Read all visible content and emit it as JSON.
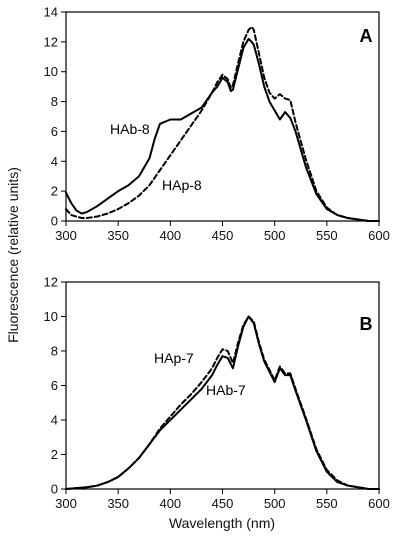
{
  "figure": {
    "ylabel": "Fluorescence (relative units)",
    "xlabel": "Wavelength (nm)"
  },
  "chart_data": [
    {
      "type": "line",
      "panel_label": "A",
      "xlim": [
        300,
        600
      ],
      "ylim": [
        0,
        14
      ],
      "xticks": [
        300,
        350,
        400,
        450,
        500,
        550,
        600
      ],
      "yticks": [
        0,
        2,
        4,
        6,
        8,
        10,
        12,
        14
      ],
      "series": [
        {
          "name": "HAb-8",
          "style": "solid",
          "x": [
            300,
            305,
            310,
            315,
            320,
            325,
            330,
            340,
            350,
            360,
            370,
            380,
            385,
            390,
            400,
            410,
            420,
            430,
            440,
            445,
            450,
            455,
            458,
            460,
            465,
            470,
            475,
            478,
            480,
            485,
            490,
            495,
            500,
            505,
            510,
            515,
            520,
            530,
            540,
            550,
            560,
            570,
            580,
            590,
            600
          ],
          "y": [
            1.9,
            1.2,
            0.7,
            0.5,
            0.6,
            0.8,
            1.0,
            1.5,
            2.0,
            2.4,
            3.0,
            4.2,
            5.5,
            6.5,
            6.8,
            6.8,
            7.2,
            7.6,
            8.6,
            9.0,
            9.6,
            9.3,
            8.7,
            8.8,
            10.2,
            11.6,
            12.2,
            12.0,
            11.8,
            10.5,
            9.0,
            8.0,
            7.4,
            6.8,
            7.3,
            6.9,
            6.0,
            3.6,
            1.8,
            0.8,
            0.4,
            0.2,
            0.1,
            0.0,
            0.0
          ]
        },
        {
          "name": "HAp-8",
          "style": "dashed",
          "x": [
            300,
            305,
            310,
            315,
            320,
            330,
            340,
            350,
            360,
            370,
            380,
            390,
            400,
            410,
            420,
            430,
            440,
            445,
            450,
            455,
            458,
            460,
            465,
            470,
            475,
            478,
            480,
            485,
            490,
            495,
            500,
            505,
            510,
            515,
            520,
            530,
            540,
            550,
            560,
            570,
            580,
            590,
            600
          ],
          "y": [
            0.8,
            0.4,
            0.3,
            0.2,
            0.2,
            0.3,
            0.5,
            0.8,
            1.2,
            1.7,
            2.4,
            3.4,
            4.4,
            5.4,
            6.4,
            7.4,
            8.6,
            9.3,
            9.8,
            9.5,
            8.9,
            9.1,
            10.6,
            12.0,
            12.8,
            13.0,
            12.8,
            11.2,
            9.6,
            8.6,
            8.2,
            8.5,
            8.2,
            8.1,
            6.6,
            4.1,
            2.0,
            0.9,
            0.4,
            0.2,
            0.1,
            0.0,
            0.0
          ]
        }
      ]
    },
    {
      "type": "line",
      "panel_label": "B",
      "xlim": [
        300,
        600
      ],
      "ylim": [
        0,
        12
      ],
      "xticks": [
        300,
        350,
        400,
        450,
        500,
        550,
        600
      ],
      "yticks": [
        0,
        2,
        4,
        6,
        8,
        10,
        12
      ],
      "series": [
        {
          "name": "HAb-7",
          "style": "solid",
          "x": [
            300,
            310,
            320,
            330,
            340,
            350,
            360,
            370,
            380,
            390,
            400,
            410,
            420,
            430,
            440,
            445,
            450,
            455,
            460,
            465,
            470,
            475,
            480,
            485,
            490,
            495,
            500,
            505,
            510,
            515,
            520,
            530,
            540,
            550,
            560,
            570,
            580,
            590,
            600
          ],
          "y": [
            0.0,
            0.05,
            0.1,
            0.2,
            0.4,
            0.7,
            1.2,
            1.8,
            2.6,
            3.4,
            4.0,
            4.6,
            5.2,
            5.8,
            6.6,
            7.2,
            7.7,
            7.6,
            7.0,
            8.3,
            9.4,
            10.0,
            9.6,
            8.4,
            7.4,
            6.8,
            6.2,
            7.0,
            6.6,
            6.6,
            5.7,
            4.0,
            2.2,
            1.0,
            0.4,
            0.2,
            0.1,
            0.0,
            0.0
          ]
        },
        {
          "name": "HAp-7",
          "style": "dashed",
          "x": [
            300,
            310,
            320,
            330,
            340,
            350,
            360,
            370,
            380,
            390,
            400,
            410,
            420,
            430,
            440,
            445,
            450,
            455,
            460,
            465,
            470,
            475,
            480,
            485,
            490,
            495,
            500,
            505,
            510,
            515,
            520,
            530,
            540,
            550,
            560,
            570,
            580,
            590,
            600
          ],
          "y": [
            0.0,
            0.05,
            0.1,
            0.2,
            0.4,
            0.7,
            1.2,
            1.8,
            2.6,
            3.5,
            4.2,
            4.9,
            5.5,
            6.2,
            7.0,
            7.6,
            8.1,
            8.0,
            7.3,
            8.5,
            9.5,
            10.0,
            9.7,
            8.5,
            7.5,
            6.9,
            6.3,
            7.1,
            6.7,
            6.7,
            5.8,
            4.1,
            2.3,
            1.1,
            0.5,
            0.2,
            0.1,
            0.0,
            0.0
          ]
        }
      ]
    }
  ]
}
